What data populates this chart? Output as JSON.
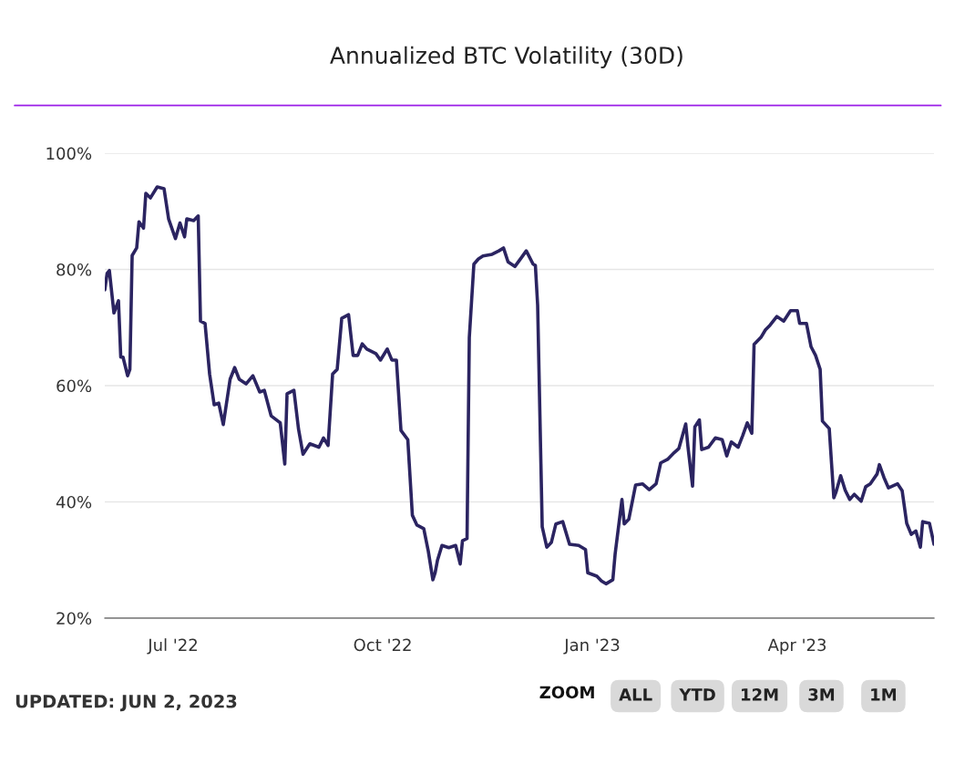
{
  "chart_data": {
    "type": "line",
    "title": "Annualized BTC Volatility (30D)",
    "x": [
      "2022-06-01",
      "2022-06-02",
      "2022-06-03",
      "2022-06-05",
      "2022-06-07",
      "2022-06-08",
      "2022-06-09",
      "2022-06-11",
      "2022-06-12",
      "2022-06-13",
      "2022-06-15",
      "2022-06-16",
      "2022-06-18",
      "2022-06-19",
      "2022-06-21",
      "2022-06-24",
      "2022-06-27",
      "2022-06-29",
      "2022-07-02",
      "2022-07-04",
      "2022-07-06",
      "2022-07-07",
      "2022-07-10",
      "2022-07-12",
      "2022-07-13",
      "2022-07-15",
      "2022-07-17",
      "2022-07-19",
      "2022-07-21",
      "2022-07-23",
      "2022-07-26",
      "2022-07-28",
      "2022-07-30",
      "2022-08-02",
      "2022-08-05",
      "2022-08-08",
      "2022-08-10",
      "2022-08-13",
      "2022-08-16",
      "2022-08-17",
      "2022-08-19",
      "2022-08-20",
      "2022-08-23",
      "2022-08-25",
      "2022-08-27",
      "2022-08-30",
      "2022-09-03",
      "2022-09-05",
      "2022-09-07",
      "2022-09-09",
      "2022-09-11",
      "2022-09-13",
      "2022-09-16",
      "2022-09-18",
      "2022-09-20",
      "2022-09-22",
      "2022-09-24",
      "2022-09-28",
      "2022-09-30",
      "2022-10-03",
      "2022-10-05",
      "2022-10-07",
      "2022-10-09",
      "2022-10-12",
      "2022-10-14",
      "2022-10-16",
      "2022-10-19",
      "2022-10-21",
      "2022-10-23",
      "2022-10-24",
      "2022-10-25",
      "2022-10-27",
      "2022-10-30",
      "2022-11-02",
      "2022-11-04",
      "2022-11-05",
      "2022-11-07",
      "2022-11-08",
      "2022-11-10",
      "2022-11-12",
      "2022-11-14",
      "2022-11-18",
      "2022-11-21",
      "2022-11-23",
      "2022-11-25",
      "2022-11-28",
      "2022-12-01",
      "2022-12-03",
      "2022-12-06",
      "2022-12-07",
      "2022-12-08",
      "2022-12-10",
      "2022-12-12",
      "2022-12-14",
      "2022-12-16",
      "2022-12-19",
      "2022-12-22",
      "2022-12-26",
      "2022-12-29",
      "2022-12-30",
      "2023-01-03",
      "2023-01-05",
      "2023-01-07",
      "2023-01-10",
      "2023-01-11",
      "2023-01-14",
      "2023-01-15",
      "2023-01-17",
      "2023-01-20",
      "2023-01-23",
      "2023-01-26",
      "2023-01-29",
      "2023-01-31",
      "2023-02-03",
      "2023-02-06",
      "2023-02-08",
      "2023-02-11",
      "2023-02-12",
      "2023-02-14",
      "2023-02-15",
      "2023-02-17",
      "2023-02-18",
      "2023-02-21",
      "2023-02-24",
      "2023-02-27",
      "2023-03-01",
      "2023-03-03",
      "2023-03-06",
      "2023-03-08",
      "2023-03-10",
      "2023-03-12",
      "2023-03-13",
      "2023-03-16",
      "2023-03-18",
      "2023-03-20",
      "2023-03-23",
      "2023-03-26",
      "2023-03-29",
      "2023-04-01",
      "2023-04-02",
      "2023-04-05",
      "2023-04-07",
      "2023-04-09",
      "2023-04-11",
      "2023-04-12",
      "2023-04-15",
      "2023-04-17",
      "2023-04-18",
      "2023-04-20",
      "2023-04-22",
      "2023-04-24",
      "2023-04-26",
      "2023-04-29",
      "2023-05-01",
      "2023-05-03",
      "2023-05-06",
      "2023-05-07",
      "2023-05-09",
      "2023-05-11",
      "2023-05-15",
      "2023-05-17",
      "2023-05-19",
      "2023-05-21",
      "2023-05-23",
      "2023-05-25",
      "2023-05-26",
      "2023-05-29",
      "2023-05-31"
    ],
    "series": [
      {
        "color": "#2b2461",
        "values": [
          76.5,
          79.3,
          79.8,
          72.5,
          74.6,
          64.9,
          64.9,
          61.7,
          62.8,
          82.4,
          83.7,
          88.2,
          87.1,
          93.1,
          92.3,
          94.2,
          93.9,
          88.7,
          85.3,
          88.0,
          85.6,
          88.7,
          88.4,
          89.2,
          71.1,
          70.7,
          62.0,
          56.7,
          57.0,
          53.3,
          61.1,
          63.1,
          61.1,
          60.3,
          61.7,
          58.9,
          59.2,
          54.8,
          53.9,
          53.6,
          46.5,
          58.6,
          59.2,
          52.6,
          48.2,
          50.0,
          49.4,
          51.0,
          49.7,
          62.0,
          62.8,
          71.6,
          72.2,
          65.2,
          65.2,
          67.2,
          66.3,
          65.5,
          64.4,
          66.3,
          64.4,
          64.4,
          52.3,
          50.7,
          37.7,
          36.0,
          35.4,
          31.5,
          26.6,
          27.8,
          29.9,
          32.5,
          32.1,
          32.5,
          29.3,
          33.3,
          33.7,
          68.3,
          80.9,
          81.8,
          82.3,
          82.6,
          83.2,
          83.7,
          81.3,
          80.5,
          82.1,
          83.2,
          80.9,
          80.7,
          73.8,
          35.7,
          32.2,
          33.0,
          36.2,
          36.6,
          32.7,
          32.5,
          31.8,
          27.8,
          27.2,
          26.4,
          25.9,
          26.6,
          31.0,
          40.4,
          36.2,
          37.0,
          42.9,
          43.1,
          42.1,
          43.1,
          46.7,
          47.3,
          48.5,
          49.2,
          53.4,
          49.4,
          42.7,
          52.9,
          54.1,
          49.0,
          49.4,
          51.0,
          50.7,
          47.9,
          50.3,
          49.4,
          51.4,
          53.6,
          51.8,
          67.1,
          68.3,
          69.6,
          70.4,
          71.9,
          71.1,
          72.9,
          72.9,
          70.7,
          70.7,
          66.7,
          65.2,
          62.8,
          53.9,
          52.6,
          40.7,
          41.7,
          44.5,
          42.0,
          40.4,
          41.3,
          40.1,
          42.6,
          43.1,
          44.8,
          46.4,
          44.2,
          42.4,
          43.1,
          41.9,
          36.3,
          34.4,
          35.0,
          32.2,
          36.6,
          36.3,
          32.7
        ]
      }
    ],
    "xlim": [
      "2022-06-01",
      "2023-05-31"
    ],
    "xticks": [
      {
        "value": "2022-07-01",
        "label": "Jul '22"
      },
      {
        "value": "2022-10-01",
        "label": "Oct '22"
      },
      {
        "value": "2023-01-01",
        "label": "Jan '23"
      },
      {
        "value": "2023-04-01",
        "label": "Apr '23"
      }
    ],
    "ylim": [
      20,
      100
    ],
    "yticks": [
      {
        "value": 20,
        "label": "20%"
      },
      {
        "value": 40,
        "label": "40%"
      },
      {
        "value": 60,
        "label": "60%"
      },
      {
        "value": 80,
        "label": "80%"
      },
      {
        "value": 100,
        "label": "100%"
      }
    ],
    "grid": "y",
    "marker": "none",
    "line_style": "solid",
    "annotations": [
      "UPDATED: JUN 2, 2023",
      "ZOOM",
      "ALL",
      "YTD",
      "12M",
      "3M",
      "1M"
    ]
  }
}
